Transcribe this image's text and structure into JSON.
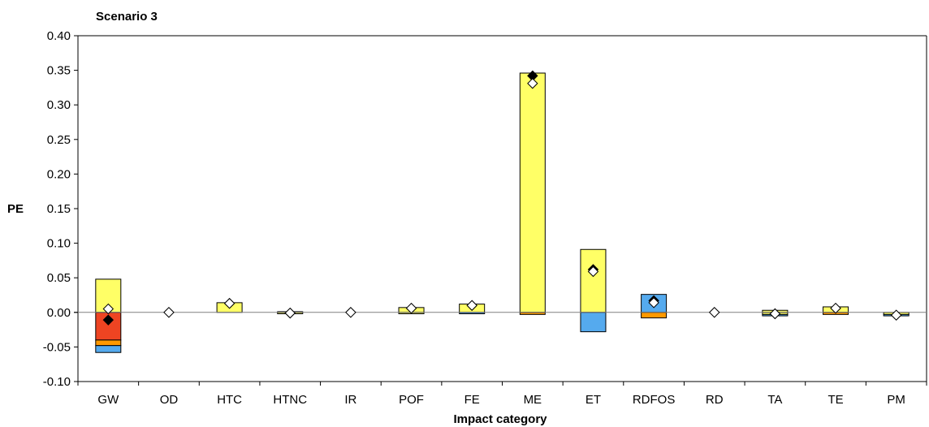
{
  "chart_data": {
    "type": "bar",
    "title": "Scenario 3",
    "xlabel": "Impact category",
    "ylabel": "PE",
    "ylim": [
      -0.1,
      0.4
    ],
    "yticks": [
      "0.40",
      "0.35",
      "0.30",
      "0.25",
      "0.20",
      "0.15",
      "0.10",
      "0.05",
      "0.00",
      "-0.05",
      "-0.10"
    ],
    "categories": [
      "GW",
      "OD",
      "HTC",
      "HTNC",
      "IR",
      "POF",
      "FE",
      "ME",
      "ET",
      "RDFOS",
      "RD",
      "TA",
      "TE",
      "PM"
    ],
    "stacked": true,
    "colors": {
      "yellow": "#ffff66",
      "red": "#ee4422",
      "orange": "#ff9900",
      "blue": "#55aaee",
      "marker_black": "#000000",
      "marker_white": "#ffffff"
    },
    "bars": [
      {
        "category": "GW",
        "segments": [
          {
            "color": "yellow",
            "from": 0,
            "to": 0.048
          },
          {
            "color": "red",
            "from": 0,
            "to": -0.04
          },
          {
            "color": "orange",
            "from": -0.04,
            "to": -0.048
          },
          {
            "color": "blue",
            "from": -0.048,
            "to": -0.058
          }
        ]
      },
      {
        "category": "OD",
        "segments": []
      },
      {
        "category": "HTC",
        "segments": [
          {
            "color": "yellow",
            "from": 0,
            "to": 0.014
          }
        ]
      },
      {
        "category": "HTNC",
        "segments": [
          {
            "color": "yellow",
            "from": 0,
            "to": 0.001
          },
          {
            "color": "yellow",
            "from": 0,
            "to": -0.002
          }
        ]
      },
      {
        "category": "IR",
        "segments": []
      },
      {
        "category": "POF",
        "segments": [
          {
            "color": "yellow",
            "from": 0,
            "to": 0.007
          },
          {
            "color": "yellow",
            "from": 0,
            "to": -0.002
          }
        ]
      },
      {
        "category": "FE",
        "segments": [
          {
            "color": "yellow",
            "from": 0,
            "to": 0.012
          },
          {
            "color": "blue",
            "from": 0,
            "to": -0.002
          }
        ]
      },
      {
        "category": "ME",
        "segments": [
          {
            "color": "yellow",
            "from": 0,
            "to": 0.346
          },
          {
            "color": "orange",
            "from": 0,
            "to": -0.003
          }
        ]
      },
      {
        "category": "ET",
        "segments": [
          {
            "color": "yellow",
            "from": 0,
            "to": 0.091
          },
          {
            "color": "blue",
            "from": 0,
            "to": -0.028
          }
        ]
      },
      {
        "category": "RDFOS",
        "segments": [
          {
            "color": "blue",
            "from": 0,
            "to": 0.026
          },
          {
            "color": "orange",
            "from": 0,
            "to": -0.008
          }
        ]
      },
      {
        "category": "RD",
        "segments": []
      },
      {
        "category": "TA",
        "segments": [
          {
            "color": "yellow",
            "from": 0,
            "to": 0.003
          },
          {
            "color": "yellow",
            "from": 0,
            "to": -0.003
          },
          {
            "color": "blue",
            "from": -0.003,
            "to": -0.005
          }
        ]
      },
      {
        "category": "TE",
        "segments": [
          {
            "color": "yellow",
            "from": 0,
            "to": 0.008
          },
          {
            "color": "orange",
            "from": 0,
            "to": -0.003
          }
        ]
      },
      {
        "category": "PM",
        "segments": [
          {
            "color": "yellow",
            "from": 0,
            "to": -0.003
          },
          {
            "color": "blue",
            "from": -0.003,
            "to": -0.005
          }
        ]
      }
    ],
    "markers": [
      {
        "category": "GW",
        "black": -0.011,
        "white": 0.005
      },
      {
        "category": "OD",
        "black": 0.0,
        "white": 0.0
      },
      {
        "category": "HTC",
        "black": 0.013,
        "white": 0.013
      },
      {
        "category": "HTNC",
        "black": -0.001,
        "white": -0.001
      },
      {
        "category": "IR",
        "black": 0.0,
        "white": 0.0
      },
      {
        "category": "POF",
        "black": 0.006,
        "white": 0.006
      },
      {
        "category": "FE",
        "black": 0.01,
        "white": 0.01
      },
      {
        "category": "ME",
        "black": 0.342,
        "white": 0.331
      },
      {
        "category": "ET",
        "black": 0.062,
        "white": 0.059
      },
      {
        "category": "RDFOS",
        "black": 0.017,
        "white": 0.014
      },
      {
        "category": "RD",
        "black": 0.0,
        "white": 0.0
      },
      {
        "category": "TA",
        "black": -0.002,
        "white": -0.002
      },
      {
        "category": "TE",
        "black": 0.006,
        "white": 0.006
      },
      {
        "category": "PM",
        "black": -0.004,
        "white": -0.004
      }
    ],
    "grid": false,
    "legend": "none"
  }
}
